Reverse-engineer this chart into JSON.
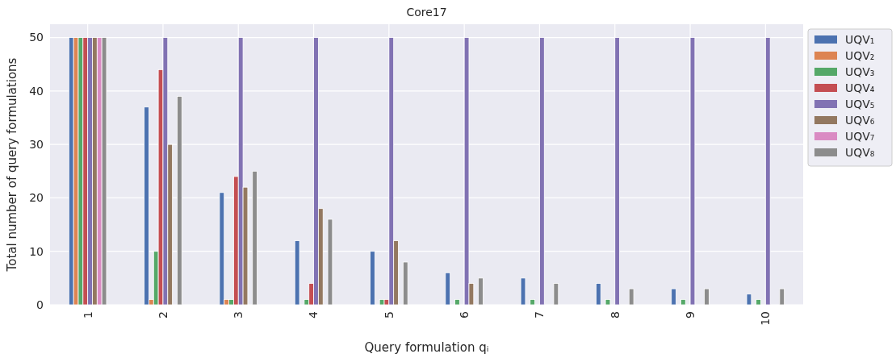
{
  "chart_data": {
    "type": "bar",
    "title": "Core17",
    "xlabel": "Query formulation qᵢ",
    "ylabel": "Total number of query formulations",
    "categories": [
      "1",
      "2",
      "3",
      "4",
      "5",
      "6",
      "7",
      "8",
      "9",
      "10"
    ],
    "series": [
      {
        "name": "UQV₁",
        "color": "#4c72b0",
        "values": [
          50,
          37,
          21,
          12,
          10,
          6,
          5,
          4,
          3,
          2
        ]
      },
      {
        "name": "UQV₂",
        "color": "#dd8452",
        "values": [
          50,
          1,
          1,
          0,
          0,
          0,
          0,
          0,
          0,
          0
        ]
      },
      {
        "name": "UQV₃",
        "color": "#55a868",
        "values": [
          50,
          10,
          1,
          1,
          1,
          1,
          1,
          1,
          1,
          1
        ]
      },
      {
        "name": "UQV₄",
        "color": "#c44e52",
        "values": [
          50,
          44,
          24,
          4,
          1,
          0,
          0,
          0,
          0,
          0
        ]
      },
      {
        "name": "UQV₅",
        "color": "#8172b3",
        "values": [
          50,
          50,
          50,
          50,
          50,
          50,
          50,
          50,
          50,
          50
        ]
      },
      {
        "name": "UQV₆",
        "color": "#937860",
        "values": [
          50,
          30,
          22,
          18,
          12,
          4,
          0,
          0,
          0,
          0
        ]
      },
      {
        "name": "UQV₇",
        "color": "#da8bc3",
        "values": [
          50,
          0,
          0,
          0,
          0,
          0,
          0,
          0,
          0,
          0
        ]
      },
      {
        "name": "UQV₈",
        "color": "#8c8c8c",
        "values": [
          50,
          39,
          25,
          16,
          8,
          5,
          4,
          3,
          3,
          3
        ]
      }
    ],
    "ylim": [
      0,
      52.5
    ],
    "yticks": [
      0,
      10,
      20,
      30,
      40,
      50
    ],
    "grid": true,
    "legend": "right"
  }
}
